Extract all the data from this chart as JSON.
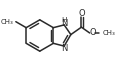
{
  "bg_color": "#ffffff",
  "line_color": "#2a2a2a",
  "line_width": 1.1,
  "figsize": [
    1.19,
    0.71
  ],
  "dpi": 100,
  "xlim": [
    0,
    119
  ],
  "ylim": [
    0,
    71
  ]
}
